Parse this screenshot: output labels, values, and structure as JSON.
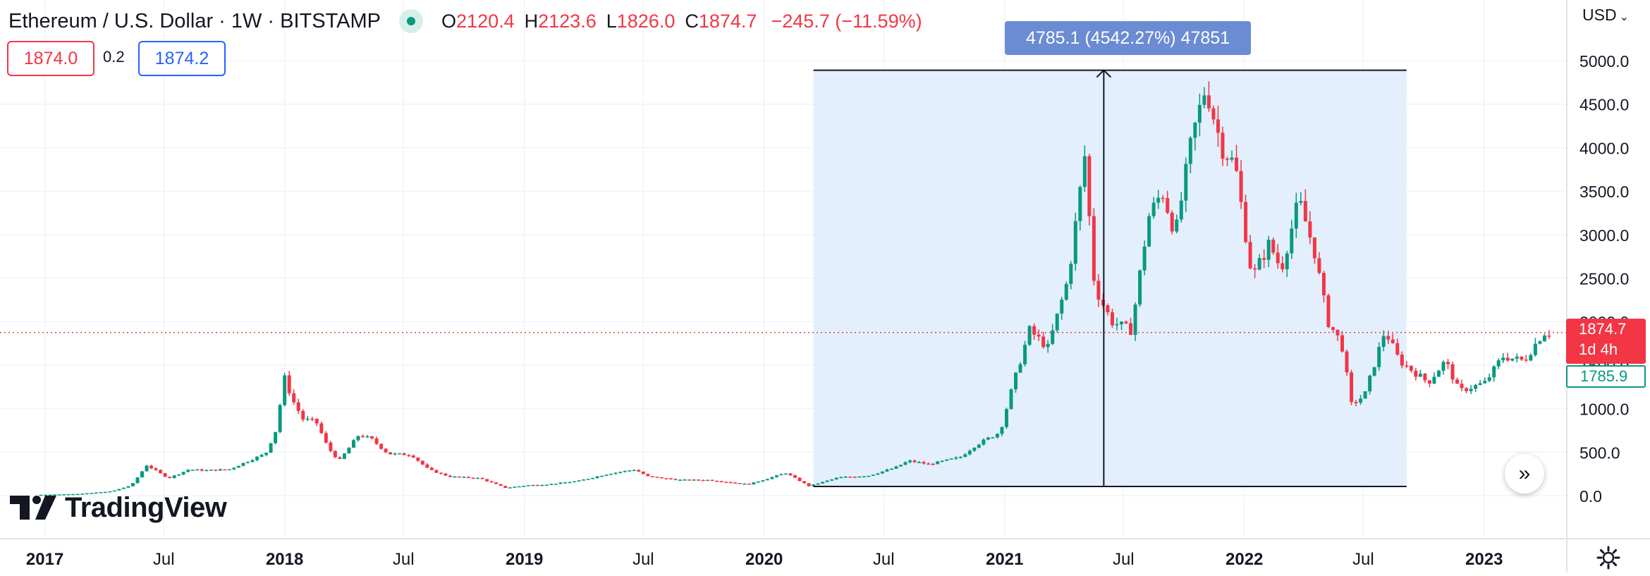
{
  "header": {
    "title": "Ethereum / U.S. Dollar · 1W · BITSTAMP",
    "ohlc": {
      "o_key": "O",
      "o": "2120.4",
      "h_key": "H",
      "h": "2123.6",
      "l_key": "L",
      "l": "1826.0",
      "c_key": "C",
      "c": "1874.7",
      "change": "−245.7 (−11.59%)"
    },
    "sell_price": "1874.0",
    "spread": "0.2",
    "buy_price": "1874.2",
    "currency": "USD"
  },
  "price_tags": {
    "current": "1874.7",
    "countdown": "1d 4h",
    "previous": "1785.9"
  },
  "range_tool": {
    "label": "4785.1 (4542.27%) 47851",
    "start_date": "2020-03-16",
    "end_date": "2022-09-05",
    "low": 105,
    "high": 4890,
    "arrow_date": "2021-06-01"
  },
  "logo": {
    "text": "TradingView"
  },
  "nav": {
    "scroll_label": "»"
  },
  "colors": {
    "up": "#089981",
    "down": "#f23645",
    "range_fill": "#e3effd",
    "grid": "#f0f3fa"
  },
  "chart_data": {
    "type": "candlestick",
    "title": "Ethereum / U.S. Dollar · 1W · BITSTAMP",
    "ylim": [
      0,
      5000
    ],
    "y_ticks": [
      "5000.0",
      "4500.0",
      "4000.0",
      "3500.0",
      "3000.0",
      "2500.0",
      "2000.0",
      "1500.0",
      "1000.0",
      "500.0",
      "0.0"
    ],
    "x_ticks": [
      {
        "label": "2017",
        "date": "2017-01-01",
        "bold": true
      },
      {
        "label": "Jul",
        "date": "2017-07-01",
        "bold": false
      },
      {
        "label": "2018",
        "date": "2018-01-01",
        "bold": true
      },
      {
        "label": "Jul",
        "date": "2018-07-01",
        "bold": false
      },
      {
        "label": "2019",
        "date": "2019-01-01",
        "bold": true
      },
      {
        "label": "Jul",
        "date": "2019-07-01",
        "bold": false
      },
      {
        "label": "2020",
        "date": "2020-01-01",
        "bold": true
      },
      {
        "label": "Jul",
        "date": "2020-07-01",
        "bold": false
      },
      {
        "label": "2021",
        "date": "2021-01-01",
        "bold": true
      },
      {
        "label": "Jul",
        "date": "2021-07-01",
        "bold": false
      },
      {
        "label": "2022",
        "date": "2022-01-01",
        "bold": true
      },
      {
        "label": "Jul",
        "date": "2022-07-01",
        "bold": false
      },
      {
        "label": "2023",
        "date": "2023-01-01",
        "bold": true
      }
    ],
    "weekly_close_path": [
      [
        "2016-12-26",
        8
      ],
      [
        "2017-03-01",
        20
      ],
      [
        "2017-04-20",
        50
      ],
      [
        "2017-05-20",
        120
      ],
      [
        "2017-06-12",
        350
      ],
      [
        "2017-07-15",
        200
      ],
      [
        "2017-08-15",
        300
      ],
      [
        "2017-09-10",
        290
      ],
      [
        "2017-10-15",
        300
      ],
      [
        "2017-11-20",
        420
      ],
      [
        "2017-12-10",
        480
      ],
      [
        "2017-12-25",
        740
      ],
      [
        "2018-01-08",
        1350
      ],
      [
        "2018-01-20",
        1100
      ],
      [
        "2018-02-05",
        880
      ],
      [
        "2018-02-25",
        850
      ],
      [
        "2018-03-15",
        550
      ],
      [
        "2018-04-01",
        400
      ],
      [
        "2018-05-01",
        700
      ],
      [
        "2018-05-20",
        650
      ],
      [
        "2018-06-15",
        480
      ],
      [
        "2018-07-20",
        470
      ],
      [
        "2018-08-15",
        300
      ],
      [
        "2018-09-15",
        220
      ],
      [
        "2018-11-01",
        200
      ],
      [
        "2018-12-10",
        90
      ],
      [
        "2019-01-15",
        120
      ],
      [
        "2019-02-15",
        130
      ],
      [
        "2019-04-01",
        170
      ],
      [
        "2019-05-15",
        250
      ],
      [
        "2019-06-25",
        300
      ],
      [
        "2019-07-15",
        220
      ],
      [
        "2019-09-01",
        180
      ],
      [
        "2019-10-15",
        180
      ],
      [
        "2019-12-15",
        130
      ],
      [
        "2020-02-10",
        260
      ],
      [
        "2020-03-16",
        110
      ],
      [
        "2020-05-01",
        210
      ],
      [
        "2020-06-15",
        230
      ],
      [
        "2020-07-25",
        320
      ],
      [
        "2020-08-15",
        400
      ],
      [
        "2020-09-15",
        360
      ],
      [
        "2020-11-01",
        440
      ],
      [
        "2020-11-25",
        580
      ],
      [
        "2021-01-01",
        730
      ],
      [
        "2021-01-20",
        1250
      ],
      [
        "2021-02-15",
        1900
      ],
      [
        "2021-03-15",
        1700
      ],
      [
        "2021-04-15",
        2500
      ],
      [
        "2021-05-10",
        3900
      ],
      [
        "2021-05-25",
        2400
      ],
      [
        "2021-06-20",
        2000
      ],
      [
        "2021-07-20",
        1900
      ],
      [
        "2021-08-15",
        3200
      ],
      [
        "2021-09-05",
        3500
      ],
      [
        "2021-09-25",
        3000
      ],
      [
        "2021-10-20",
        4100
      ],
      [
        "2021-11-10",
        4700
      ],
      [
        "2021-12-05",
        4000
      ],
      [
        "2021-12-25",
        3800
      ],
      [
        "2022-01-20",
        2500
      ],
      [
        "2022-02-15",
        2900
      ],
      [
        "2022-03-05",
        2600
      ],
      [
        "2022-04-01",
        3400
      ],
      [
        "2022-04-25",
        2800
      ],
      [
        "2022-05-15",
        2000
      ],
      [
        "2022-06-05",
        1750
      ],
      [
        "2022-06-20",
        1050
      ],
      [
        "2022-07-10",
        1150
      ],
      [
        "2022-08-10",
        1900
      ],
      [
        "2022-09-01",
        1550
      ],
      [
        "2022-10-15",
        1300
      ],
      [
        "2022-11-10",
        1550
      ],
      [
        "2022-12-01",
        1200
      ],
      [
        "2023-01-10",
        1300
      ],
      [
        "2023-02-05",
        1600
      ],
      [
        "2023-03-10",
        1550
      ],
      [
        "2023-04-01",
        1800
      ],
      [
        "2023-04-10",
        1874.7
      ]
    ]
  }
}
